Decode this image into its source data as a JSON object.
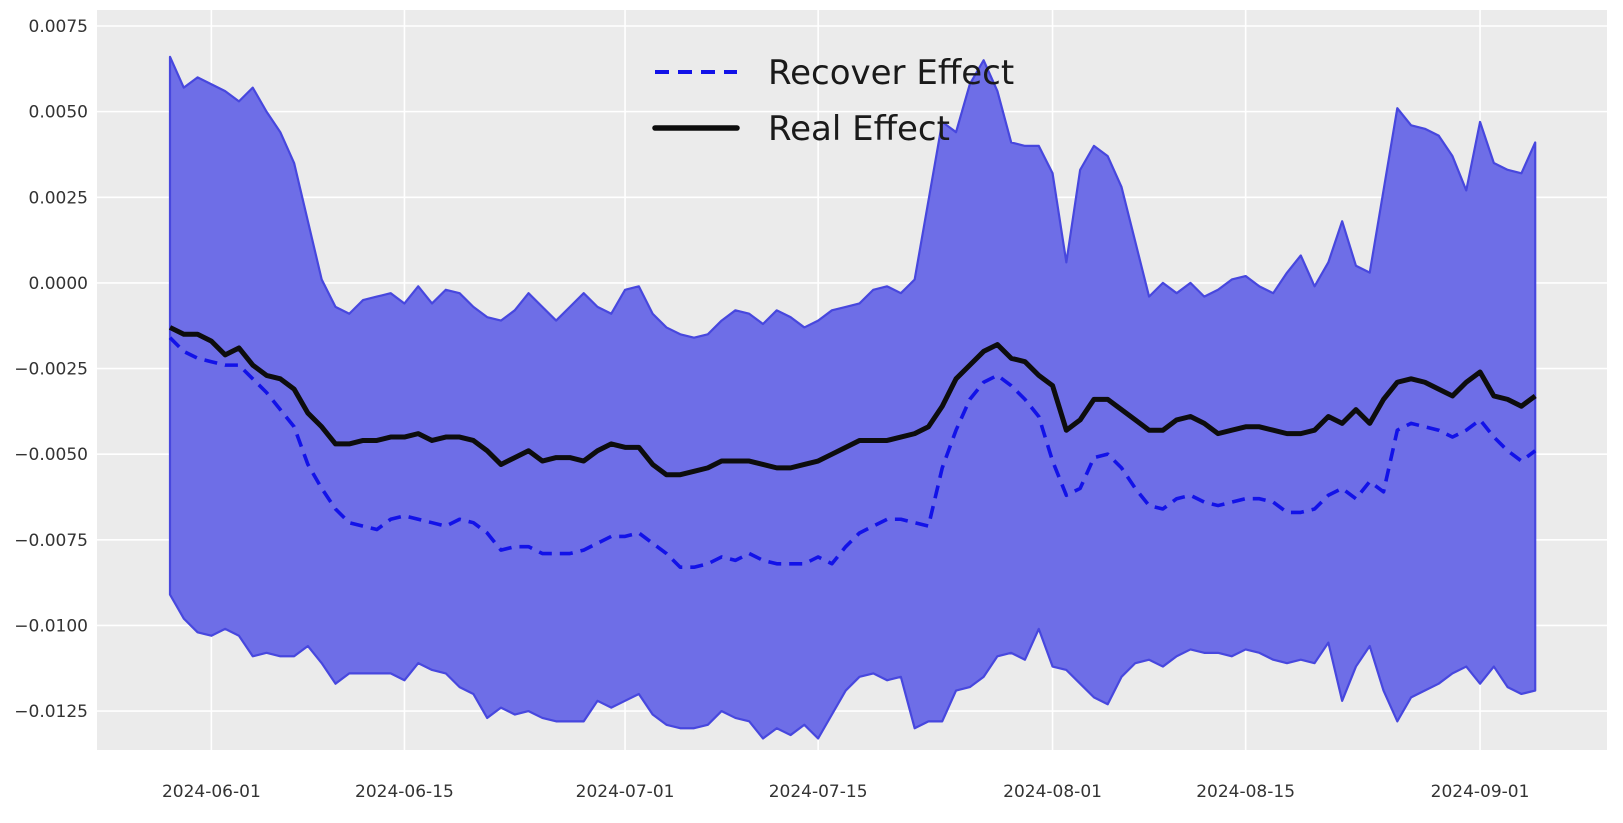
{
  "figure": {
    "background": "#ffffff",
    "plot_background": "#ebebeb",
    "grid_color": "#ffffff",
    "tick_color": "#333333"
  },
  "legend": {
    "position": "upper center",
    "items": [
      {
        "label": "Recover Effect",
        "style": "dashed",
        "color": "#1212e8"
      },
      {
        "label": "Real Effect",
        "style": "solid",
        "color": "#0d0d0d"
      }
    ]
  },
  "chart_data": {
    "type": "line",
    "title": "",
    "xlabel": "",
    "ylabel": "",
    "grid": true,
    "ylim": [
      -0.013636,
      0.007967
    ],
    "x_dates": [
      "2024-05-29",
      "2024-05-30",
      "2024-05-31",
      "2024-06-01",
      "2024-06-02",
      "2024-06-03",
      "2024-06-04",
      "2024-06-05",
      "2024-06-06",
      "2024-06-07",
      "2024-06-08",
      "2024-06-09",
      "2024-06-10",
      "2024-06-11",
      "2024-06-12",
      "2024-06-13",
      "2024-06-14",
      "2024-06-15",
      "2024-06-16",
      "2024-06-17",
      "2024-06-18",
      "2024-06-19",
      "2024-06-20",
      "2024-06-21",
      "2024-06-22",
      "2024-06-23",
      "2024-06-24",
      "2024-06-25",
      "2024-06-26",
      "2024-06-27",
      "2024-06-28",
      "2024-06-29",
      "2024-06-30",
      "2024-07-01",
      "2024-07-02",
      "2024-07-03",
      "2024-07-04",
      "2024-07-05",
      "2024-07-06",
      "2024-07-07",
      "2024-07-08",
      "2024-07-09",
      "2024-07-10",
      "2024-07-11",
      "2024-07-12",
      "2024-07-13",
      "2024-07-14",
      "2024-07-15",
      "2024-07-16",
      "2024-07-17",
      "2024-07-18",
      "2024-07-19",
      "2024-07-20",
      "2024-07-21",
      "2024-07-22",
      "2024-07-23",
      "2024-07-24",
      "2024-07-25",
      "2024-07-26",
      "2024-07-27",
      "2024-07-28",
      "2024-07-29",
      "2024-07-30",
      "2024-07-31",
      "2024-08-01",
      "2024-08-02",
      "2024-08-03",
      "2024-08-04",
      "2024-08-05",
      "2024-08-06",
      "2024-08-07",
      "2024-08-08",
      "2024-08-09",
      "2024-08-10",
      "2024-08-11",
      "2024-08-12",
      "2024-08-13",
      "2024-08-14",
      "2024-08-15",
      "2024-08-16",
      "2024-08-17",
      "2024-08-18",
      "2024-08-19",
      "2024-08-20",
      "2024-08-21",
      "2024-08-22",
      "2024-08-23",
      "2024-08-24",
      "2024-08-25",
      "2024-08-26",
      "2024-08-27",
      "2024-08-28",
      "2024-08-29",
      "2024-08-30",
      "2024-08-31",
      "2024-09-01",
      "2024-09-02",
      "2024-09-03",
      "2024-09-04",
      "2024-09-05"
    ],
    "series": [
      {
        "name": "Recover Effect",
        "style": "dashed",
        "color": "#1212e8",
        "values": [
          -0.0016,
          -0.002,
          -0.0022,
          -0.0023,
          -0.0024,
          -0.0024,
          -0.0028,
          -0.0032,
          -0.0037,
          -0.0042,
          -0.0053,
          -0.006,
          -0.0066,
          -0.007,
          -0.0071,
          -0.0072,
          -0.0069,
          -0.0068,
          -0.0069,
          -0.007,
          -0.0071,
          -0.0069,
          -0.007,
          -0.0073,
          -0.0078,
          -0.0077,
          -0.0077,
          -0.0079,
          -0.0079,
          -0.0079,
          -0.0078,
          -0.0076,
          -0.0074,
          -0.0074,
          -0.0073,
          -0.0076,
          -0.0079,
          -0.0083,
          -0.0083,
          -0.0082,
          -0.008,
          -0.0081,
          -0.0079,
          -0.0081,
          -0.0082,
          -0.0082,
          -0.0082,
          -0.008,
          -0.0082,
          -0.0077,
          -0.0073,
          -0.0071,
          -0.0069,
          -0.0069,
          -0.007,
          -0.0071,
          -0.0054,
          -0.0043,
          -0.0034,
          -0.0029,
          -0.0027,
          -0.003,
          -0.0034,
          -0.0039,
          -0.0052,
          -0.0062,
          -0.006,
          -0.0051,
          -0.005,
          -0.0054,
          -0.006,
          -0.0065,
          -0.0066,
          -0.0063,
          -0.0062,
          -0.0064,
          -0.0065,
          -0.0064,
          -0.0063,
          -0.0063,
          -0.0064,
          -0.0067,
          -0.0067,
          -0.0066,
          -0.0062,
          -0.006,
          -0.0063,
          -0.0058,
          -0.0061,
          -0.0043,
          -0.0041,
          -0.0042,
          -0.0043,
          -0.0045,
          -0.0043,
          -0.004,
          -0.0045,
          -0.0049,
          -0.0052,
          -0.0049
        ]
      },
      {
        "name": "Real Effect",
        "style": "solid",
        "color": "#0d0d0d",
        "values": [
          -0.0013,
          -0.0015,
          -0.0015,
          -0.0017,
          -0.0021,
          -0.0019,
          -0.0024,
          -0.0027,
          -0.0028,
          -0.0031,
          -0.0038,
          -0.0042,
          -0.0047,
          -0.0047,
          -0.0046,
          -0.0046,
          -0.0045,
          -0.0045,
          -0.0044,
          -0.0046,
          -0.0045,
          -0.0045,
          -0.0046,
          -0.0049,
          -0.0053,
          -0.0051,
          -0.0049,
          -0.0052,
          -0.0051,
          -0.0051,
          -0.0052,
          -0.0049,
          -0.0047,
          -0.0048,
          -0.0048,
          -0.0053,
          -0.0056,
          -0.0056,
          -0.0055,
          -0.0054,
          -0.0052,
          -0.0052,
          -0.0052,
          -0.0053,
          -0.0054,
          -0.0054,
          -0.0053,
          -0.0052,
          -0.005,
          -0.0048,
          -0.0046,
          -0.0046,
          -0.0046,
          -0.0045,
          -0.0044,
          -0.0042,
          -0.0036,
          -0.0028,
          -0.0024,
          -0.002,
          -0.0018,
          -0.0022,
          -0.0023,
          -0.0027,
          -0.003,
          -0.0043,
          -0.004,
          -0.0034,
          -0.0034,
          -0.0037,
          -0.004,
          -0.0043,
          -0.0043,
          -0.004,
          -0.0039,
          -0.0041,
          -0.0044,
          -0.0043,
          -0.0042,
          -0.0042,
          -0.0043,
          -0.0044,
          -0.0044,
          -0.0043,
          -0.0039,
          -0.0041,
          -0.0037,
          -0.0041,
          -0.0034,
          -0.0029,
          -0.0028,
          -0.0029,
          -0.0031,
          -0.0033,
          -0.0029,
          -0.0026,
          -0.0033,
          -0.0034,
          -0.0036,
          -0.0033
        ]
      }
    ],
    "confidence_band": {
      "fill": "#6e6ee7",
      "edge": "#4747de",
      "upper": [
        0.0066,
        0.0057,
        0.006,
        0.0058,
        0.0056,
        0.0053,
        0.0057,
        0.005,
        0.0044,
        0.0035,
        0.0018,
        0.0001,
        -0.0007,
        -0.0009,
        -0.0005,
        -0.0004,
        -0.0003,
        -0.0006,
        -0.0001,
        -0.0006,
        -0.0002,
        -0.0003,
        -0.0007,
        -0.001,
        -0.0011,
        -0.0008,
        -0.0003,
        -0.0007,
        -0.0011,
        -0.0007,
        -0.0003,
        -0.0007,
        -0.0009,
        -0.0002,
        -0.0001,
        -0.0009,
        -0.0013,
        -0.0015,
        -0.0016,
        -0.0015,
        -0.0011,
        -0.0008,
        -0.0009,
        -0.0012,
        -0.0008,
        -0.001,
        -0.0013,
        -0.0011,
        -0.0008,
        -0.0007,
        -0.0006,
        -0.0002,
        -0.0001,
        -0.0003,
        0.0001,
        0.0024,
        0.0047,
        0.0044,
        0.0058,
        0.0065,
        0.0056,
        0.0041,
        0.004,
        0.004,
        0.0032,
        0.0006,
        0.0033,
        0.004,
        0.0037,
        0.0028,
        0.0012,
        -0.0004,
        0.0,
        -0.0003,
        0.0,
        -0.0004,
        -0.0002,
        0.0001,
        0.0002,
        -0.0001,
        -0.0003,
        0.0003,
        0.0008,
        -0.0001,
        0.0006,
        0.0018,
        0.0005,
        0.0003,
        0.0027,
        0.0051,
        0.0046,
        0.0045,
        0.0043,
        0.0037,
        0.0027,
        0.0047,
        0.0035,
        0.0033,
        0.0032,
        0.0041
      ],
      "lower": [
        -0.0091,
        -0.0098,
        -0.0102,
        -0.0103,
        -0.0101,
        -0.0103,
        -0.0109,
        -0.0108,
        -0.0109,
        -0.0109,
        -0.0106,
        -0.0111,
        -0.0117,
        -0.0114,
        -0.0114,
        -0.0114,
        -0.0114,
        -0.0116,
        -0.0111,
        -0.0113,
        -0.0114,
        -0.0118,
        -0.012,
        -0.0127,
        -0.0124,
        -0.0126,
        -0.0125,
        -0.0127,
        -0.0128,
        -0.0128,
        -0.0128,
        -0.0122,
        -0.0124,
        -0.0122,
        -0.012,
        -0.0126,
        -0.0129,
        -0.013,
        -0.013,
        -0.0129,
        -0.0125,
        -0.0127,
        -0.0128,
        -0.0133,
        -0.013,
        -0.0132,
        -0.0129,
        -0.0133,
        -0.0126,
        -0.0119,
        -0.0115,
        -0.0114,
        -0.0116,
        -0.0115,
        -0.013,
        -0.0128,
        -0.0128,
        -0.0119,
        -0.0118,
        -0.0115,
        -0.0109,
        -0.0108,
        -0.011,
        -0.0101,
        -0.0112,
        -0.0113,
        -0.0117,
        -0.0121,
        -0.0123,
        -0.0115,
        -0.0111,
        -0.011,
        -0.0112,
        -0.0109,
        -0.0107,
        -0.0108,
        -0.0108,
        -0.0109,
        -0.0107,
        -0.0108,
        -0.011,
        -0.0111,
        -0.011,
        -0.0111,
        -0.0105,
        -0.0122,
        -0.0112,
        -0.0106,
        -0.0119,
        -0.0128,
        -0.0121,
        -0.0119,
        -0.0117,
        -0.0114,
        -0.0112,
        -0.0117,
        -0.0112,
        -0.0118,
        -0.012,
        -0.0119
      ]
    },
    "y_ticks": [
      {
        "value": 0.0075,
        "label": "0.0075"
      },
      {
        "value": 0.005,
        "label": "0.0050"
      },
      {
        "value": 0.0025,
        "label": "0.0025"
      },
      {
        "value": 0.0,
        "label": "0.0000"
      },
      {
        "value": -0.0025,
        "label": "−0.0025"
      },
      {
        "value": -0.005,
        "label": "−0.0050"
      },
      {
        "value": -0.0075,
        "label": "−0.0075"
      },
      {
        "value": -0.01,
        "label": "−0.0100"
      },
      {
        "value": -0.0125,
        "label": "−0.0125"
      }
    ],
    "x_ticks": [
      {
        "index": 3,
        "label": "2024-06-01"
      },
      {
        "index": 17,
        "label": "2024-06-15"
      },
      {
        "index": 33,
        "label": "2024-07-01"
      },
      {
        "index": 47,
        "label": "2024-07-15"
      },
      {
        "index": 64,
        "label": "2024-08-01"
      },
      {
        "index": 78,
        "label": "2024-08-15"
      },
      {
        "index": 95,
        "label": "2024-09-01"
      }
    ]
  }
}
